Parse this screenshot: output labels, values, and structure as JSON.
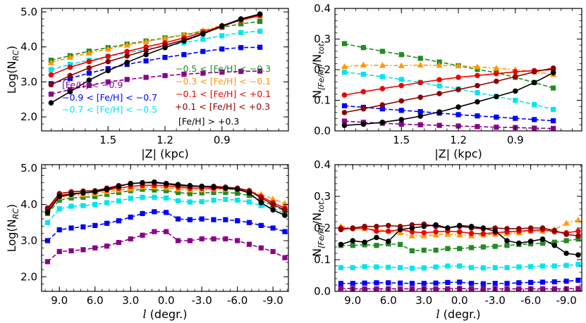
{
  "chart_data": [
    {
      "type": "line",
      "panel": "top-left",
      "xlabel": "|Z| (kpc)",
      "ylabel": "Log(N",
      "ylabel_sub": "RC",
      "ylabel_close": ")",
      "xlim": [
        1.85,
        0.55
      ],
      "ylim": [
        1.6,
        5.1
      ],
      "xticks": [
        1.5,
        1.2,
        0.9
      ],
      "xtick_labels": [
        "1.5",
        "1.2",
        "0.9"
      ],
      "yticks": [
        2.0,
        3.0,
        4.0,
        5.0
      ],
      "ytick_labels": [
        "2.0",
        "3.0",
        "4.0",
        "5.0"
      ],
      "x": [
        1.8,
        1.7,
        1.6,
        1.5,
        1.4,
        1.3,
        1.2,
        1.1,
        1.0,
        0.9,
        0.8,
        0.7
      ],
      "series": [
        {
          "name": "[Fe/H] < −0.9",
          "color": "#8b008b",
          "marker": "square",
          "dash": true,
          "values": [
            2.65,
            2.78,
            2.9,
            3.0,
            3.07,
            3.13,
            3.18,
            3.22,
            3.25,
            3.28,
            3.3,
            3.31
          ]
        },
        {
          "name": "−0.9 < [Fe/H] < −0.7",
          "color": "#0000ff",
          "marker": "square",
          "dash": true,
          "values": [
            2.95,
            3.1,
            3.25,
            3.38,
            3.5,
            3.6,
            3.7,
            3.78,
            3.87,
            3.94,
            3.98,
            3.99
          ]
        },
        {
          "name": "−0.7 < [Fe/H] < −0.5",
          "color": "#00e5ee",
          "marker": "square",
          "dash": true,
          "values": [
            3.35,
            3.5,
            3.62,
            3.73,
            3.83,
            3.93,
            4.02,
            4.12,
            4.22,
            4.32,
            4.41,
            4.45
          ]
        },
        {
          "name": "−0.5 < [Fe/H] < −0.3",
          "color": "#228b22",
          "marker": "square",
          "dash": true,
          "values": [
            3.62,
            3.75,
            3.88,
            3.98,
            4.08,
            4.17,
            4.26,
            4.34,
            4.44,
            4.56,
            4.66,
            4.73
          ]
        },
        {
          "name": "−0.3 < [Fe/H] < −0.1",
          "color": "#ff9900",
          "marker": "triangle",
          "dash": true,
          "values": [
            3.55,
            3.7,
            3.82,
            3.94,
            4.05,
            4.15,
            4.25,
            4.35,
            4.47,
            4.62,
            4.76,
            4.88
          ]
        },
        {
          "name": "−0.1 < [Fe/H] < +0.1",
          "color": "#ee0000",
          "marker": "circle",
          "dash": false,
          "values": [
            3.2,
            3.42,
            3.58,
            3.73,
            3.87,
            4.0,
            4.12,
            4.26,
            4.42,
            4.6,
            4.77,
            4.9
          ]
        },
        {
          "name": "+0.1 < [Fe/H] < +0.3",
          "color": "#8b0000",
          "marker": "circle",
          "dash": false,
          "values": [
            2.92,
            3.18,
            3.4,
            3.58,
            3.74,
            3.9,
            4.05,
            4.2,
            4.38,
            4.58,
            4.78,
            4.93
          ]
        },
        {
          "name": "[Fe/H] > +0.3",
          "color": "#000000",
          "marker": "circle",
          "dash": false,
          "values": [
            2.4,
            2.72,
            3.05,
            3.32,
            3.56,
            3.78,
            3.98,
            4.17,
            4.37,
            4.6,
            4.8,
            4.94
          ]
        }
      ]
    },
    {
      "type": "line",
      "panel": "top-right",
      "xlabel": "|Z| (kpc)",
      "ylabel": "N",
      "ylabel_sub": "[Fe/H]",
      "ylabel_mid": "/N",
      "ylabel_sub2": "tot.",
      "xlim": [
        1.85,
        0.55
      ],
      "ylim": [
        0.0,
        0.4
      ],
      "xticks": [
        1.5,
        1.2,
        0.9
      ],
      "xtick_labels": [
        "1.5",
        "1.2",
        "0.9"
      ],
      "yticks": [
        0.0,
        0.1,
        0.2,
        0.3,
        0.4
      ],
      "ytick_labels": [
        "0.0",
        "0.1",
        "0.2",
        "0.3",
        "0.4"
      ],
      "x": [
        1.8,
        1.7,
        1.6,
        1.5,
        1.4,
        1.3,
        1.2,
        1.1,
        1.0,
        0.9,
        0.8,
        0.7
      ],
      "series": [
        {
          "name": "[Fe/H] < −0.9",
          "values": [
            0.032,
            0.028,
            0.025,
            0.022,
            0.02,
            0.018,
            0.016,
            0.014,
            0.012,
            0.011,
            0.009,
            0.008
          ]
        },
        {
          "name": "−0.9 < [Fe/H] < −0.7",
          "values": [
            0.082,
            0.077,
            0.072,
            0.067,
            0.063,
            0.058,
            0.053,
            0.049,
            0.045,
            0.041,
            0.037,
            0.033
          ]
        },
        {
          "name": "−0.7 < [Fe/H] < −0.5",
          "values": [
            0.192,
            0.185,
            0.177,
            0.168,
            0.158,
            0.147,
            0.137,
            0.125,
            0.113,
            0.1,
            0.086,
            0.07
          ]
        },
        {
          "name": "−0.5 < [Fe/H] < −0.3",
          "values": [
            0.285,
            0.272,
            0.26,
            0.249,
            0.237,
            0.225,
            0.213,
            0.201,
            0.19,
            0.175,
            0.158,
            0.14
          ]
        },
        {
          "name": "−0.3 < [Fe/H] < −0.1",
          "values": [
            0.21,
            0.215,
            0.214,
            0.213,
            0.215,
            0.214,
            0.213,
            0.209,
            0.205,
            0.2,
            0.193,
            0.184
          ]
        },
        {
          "name": "−0.1 < [Fe/H] < +0.1",
          "values": [
            0.117,
            0.128,
            0.138,
            0.148,
            0.158,
            0.167,
            0.175,
            0.181,
            0.187,
            0.193,
            0.197,
            0.2
          ]
        },
        {
          "name": "+0.1 < [Fe/H] < +0.3",
          "values": [
            0.06,
            0.072,
            0.085,
            0.098,
            0.11,
            0.122,
            0.135,
            0.148,
            0.162,
            0.177,
            0.193,
            0.205
          ]
        },
        {
          "name": "[Fe/H] > +0.3",
          "values": [
            0.018,
            0.022,
            0.028,
            0.037,
            0.048,
            0.062,
            0.078,
            0.095,
            0.112,
            0.13,
            0.158,
            0.19
          ]
        }
      ]
    },
    {
      "type": "line",
      "panel": "bottom-left",
      "xlabel": "l",
      "xlabel_rest": " (degr.)",
      "ylabel": "Log(N",
      "ylabel_sub": "RC",
      "ylabel_close": ")",
      "xlim": [
        10.5,
        -10.3
      ],
      "ylim": [
        1.6,
        5.1
      ],
      "xticks": [
        9,
        6,
        3,
        0,
        -3,
        -6,
        -9
      ],
      "xtick_labels": [
        "9.0",
        "6.0",
        "3.0",
        "0.0",
        "-3.0",
        "-6.0",
        "-9.0"
      ],
      "yticks": [
        2.0,
        3.0,
        4.0,
        5.0
      ],
      "ytick_labels": [
        "2.0",
        "3.0",
        "4.0",
        "5.0"
      ],
      "x": [
        10,
        9,
        8,
        7,
        6,
        5,
        4,
        3,
        2,
        1,
        0,
        -1,
        -2,
        -3,
        -4,
        -5,
        -6,
        -7,
        -8,
        -9,
        -10
      ],
      "series": [
        {
          "name": "[Fe/H] < −0.9",
          "values": [
            2.42,
            2.7,
            2.72,
            2.75,
            2.8,
            2.85,
            2.95,
            3.05,
            3.15,
            3.25,
            3.25,
            3.0,
            3.0,
            3.05,
            3.05,
            3.05,
            3.0,
            2.9,
            2.8,
            2.7,
            2.53
          ]
        },
        {
          "name": "−0.9 < [Fe/H] < −0.7",
          "values": [
            3.0,
            3.3,
            3.35,
            3.38,
            3.42,
            3.48,
            3.55,
            3.65,
            3.75,
            3.8,
            3.78,
            3.6,
            3.58,
            3.6,
            3.58,
            3.58,
            3.55,
            3.5,
            3.42,
            3.35,
            3.25
          ]
        },
        {
          "name": "−0.7 < [Fe/H] < −0.5",
          "values": [
            3.5,
            3.88,
            3.95,
            3.97,
            4.0,
            4.05,
            4.1,
            4.17,
            4.2,
            4.2,
            4.18,
            4.1,
            4.07,
            4.08,
            4.12,
            4.14,
            4.12,
            4.07,
            3.97,
            3.9,
            3.75
          ]
        },
        {
          "name": "−0.5 < [Fe/H] < −0.3",
          "values": [
            3.75,
            4.12,
            4.18,
            4.2,
            4.22,
            4.28,
            4.33,
            4.38,
            4.42,
            4.4,
            4.38,
            4.33,
            4.3,
            4.32,
            4.33,
            4.33,
            4.31,
            4.25,
            4.1,
            3.98,
            3.82
          ]
        },
        {
          "name": "−0.3 < [Fe/H] < −0.1",
          "values": [
            3.85,
            4.2,
            4.25,
            4.27,
            4.3,
            4.35,
            4.4,
            4.43,
            4.48,
            4.48,
            4.46,
            4.42,
            4.4,
            4.4,
            4.42,
            4.42,
            4.41,
            4.38,
            4.28,
            4.15,
            4.03
          ]
        },
        {
          "name": "−0.1 < [Fe/H] < +0.1",
          "values": [
            3.85,
            4.25,
            4.3,
            4.32,
            4.35,
            4.4,
            4.45,
            4.5,
            4.53,
            4.53,
            4.52,
            4.48,
            4.45,
            4.45,
            4.45,
            4.45,
            4.43,
            4.38,
            4.22,
            4.05,
            3.9
          ]
        },
        {
          "name": "+0.1 < [Fe/H] < +0.3",
          "values": [
            3.9,
            4.3,
            4.35,
            4.37,
            4.38,
            4.45,
            4.52,
            4.57,
            4.6,
            4.6,
            4.57,
            4.52,
            4.5,
            4.5,
            4.5,
            4.48,
            4.45,
            4.38,
            4.18,
            4.0,
            3.85
          ]
        },
        {
          "name": "[Fe/H] > +0.3",
          "values": [
            3.78,
            4.22,
            4.28,
            4.32,
            4.35,
            4.42,
            4.5,
            4.58,
            4.6,
            4.62,
            4.58,
            4.55,
            4.52,
            4.5,
            4.48,
            4.45,
            4.42,
            4.32,
            4.05,
            3.85,
            3.7
          ]
        }
      ]
    },
    {
      "type": "line",
      "panel": "bottom-right",
      "xlabel": "l",
      "xlabel_rest": " (degr.)",
      "ylabel": "N",
      "ylabel_sub": "[Fe/H]",
      "ylabel_mid": "/N",
      "ylabel_sub2": "tot.",
      "xlim": [
        10.5,
        -10.3
      ],
      "ylim": [
        0.0,
        0.4
      ],
      "xticks": [
        9,
        6,
        3,
        0,
        -3,
        -6,
        -9
      ],
      "xtick_labels": [
        "9.0",
        "6.0",
        "3.0",
        "0.0",
        "-3.0",
        "-6.0",
        "-9.0"
      ],
      "yticks": [
        0.0,
        0.1,
        0.2,
        0.3,
        0.4
      ],
      "ytick_labels": [
        "0.0",
        "0.1",
        "0.2",
        "0.3",
        "0.4"
      ],
      "x": [
        10,
        9,
        8,
        7,
        6,
        5,
        4,
        3,
        2,
        1,
        0,
        -1,
        -2,
        -3,
        -4,
        -5,
        -6,
        -7,
        -8,
        -9,
        -10
      ],
      "series": [
        {
          "name": "[Fe/H] < −0.9",
          "values": [
            0.01,
            0.008,
            0.008,
            0.008,
            0.008,
            0.008,
            0.008,
            0.008,
            0.008,
            0.008,
            0.009,
            0.008,
            0.008,
            0.008,
            0.008,
            0.008,
            0.008,
            0.008,
            0.008,
            0.008,
            0.009
          ]
        },
        {
          "name": "−0.9 < [Fe/H] < −0.7",
          "values": [
            0.025,
            0.025,
            0.026,
            0.027,
            0.027,
            0.026,
            0.025,
            0.025,
            0.026,
            0.028,
            0.029,
            0.025,
            0.024,
            0.025,
            0.025,
            0.027,
            0.028,
            0.029,
            0.03,
            0.032,
            0.035
          ]
        },
        {
          "name": "−0.7 < [Fe/H] < −0.5",
          "values": [
            0.075,
            0.075,
            0.078,
            0.077,
            0.076,
            0.075,
            0.073,
            0.074,
            0.077,
            0.08,
            0.08,
            0.075,
            0.074,
            0.075,
            0.075,
            0.077,
            0.078,
            0.08,
            0.08,
            0.082,
            0.085
          ]
        },
        {
          "name": "−0.5 < [Fe/H] < −0.3",
          "values": [
            0.145,
            0.145,
            0.147,
            0.145,
            0.15,
            0.148,
            0.128,
            0.13,
            0.13,
            0.135,
            0.135,
            0.138,
            0.14,
            0.142,
            0.145,
            0.148,
            0.15,
            0.152,
            0.155,
            0.16,
            0.165
          ]
        },
        {
          "name": "−0.3 < [Fe/H] < −0.1",
          "values": [
            0.205,
            0.2,
            0.198,
            0.195,
            0.19,
            0.185,
            0.175,
            0.175,
            0.178,
            0.18,
            0.178,
            0.175,
            0.178,
            0.18,
            0.182,
            0.185,
            0.19,
            0.19,
            0.195,
            0.215,
            0.225
          ]
        },
        {
          "name": "−0.1 < [Fe/H] < +0.1",
          "values": [
            0.2,
            0.198,
            0.2,
            0.19,
            0.19,
            0.195,
            0.188,
            0.185,
            0.188,
            0.19,
            0.188,
            0.183,
            0.182,
            0.185,
            0.188,
            0.19,
            0.192,
            0.195,
            0.188,
            0.185,
            0.19
          ]
        },
        {
          "name": "+0.1 < [Fe/H] < +0.3",
          "values": [
            0.195,
            0.2,
            0.205,
            0.205,
            0.208,
            0.205,
            0.21,
            0.212,
            0.205,
            0.2,
            0.205,
            0.2,
            0.198,
            0.2,
            0.198,
            0.198,
            0.2,
            0.2,
            0.192,
            0.18,
            0.175
          ]
        },
        {
          "name": "[Fe/H] > +0.3",
          "values": [
            0.148,
            0.16,
            0.155,
            0.17,
            0.158,
            0.195,
            0.2,
            0.205,
            0.21,
            0.2,
            0.208,
            0.205,
            0.2,
            0.19,
            0.16,
            0.152,
            0.158,
            0.165,
            0.145,
            0.12,
            0.115
          ]
        }
      ]
    }
  ],
  "styles": [
    {
      "color": "#8b008b",
      "marker": "square",
      "dash": true
    },
    {
      "color": "#0000ff",
      "marker": "square",
      "dash": true
    },
    {
      "color": "#00e5ee",
      "marker": "square",
      "dash": true
    },
    {
      "color": "#228b22",
      "marker": "square",
      "dash": true
    },
    {
      "color": "#ff9900",
      "marker": "triangle",
      "dash": true
    },
    {
      "color": "#ee0000",
      "marker": "circle",
      "dash": false
    },
    {
      "color": "#8b0000",
      "marker": "circle",
      "dash": false
    },
    {
      "color": "#000000",
      "marker": "circle",
      "dash": false
    }
  ],
  "legend": {
    "left": [
      {
        "text": "[Fe/H] < −0.9",
        "color": "#8b008b"
      },
      {
        "text": "−0.9 < [Fe/H] < −0.7",
        "color": "#0000ff"
      },
      {
        "text": "−0.7 < [Fe/H] < −0.5",
        "color": "#00e5ee"
      }
    ],
    "right": [
      {
        "text": "−0.5 < [Fe/H] < −0.3",
        "color": "#228b22"
      },
      {
        "text": "−0.3 < [Fe/H] < −0.1",
        "color": "#ff9900"
      },
      {
        "text": "−0.1 < [Fe/H] < +0.1",
        "color": "#ee0000"
      },
      {
        "text": "+0.1 < [Fe/H] < +0.3",
        "color": "#8b0000"
      },
      {
        "text": "[Fe/H] > +0.3",
        "color": "#000000"
      }
    ]
  }
}
